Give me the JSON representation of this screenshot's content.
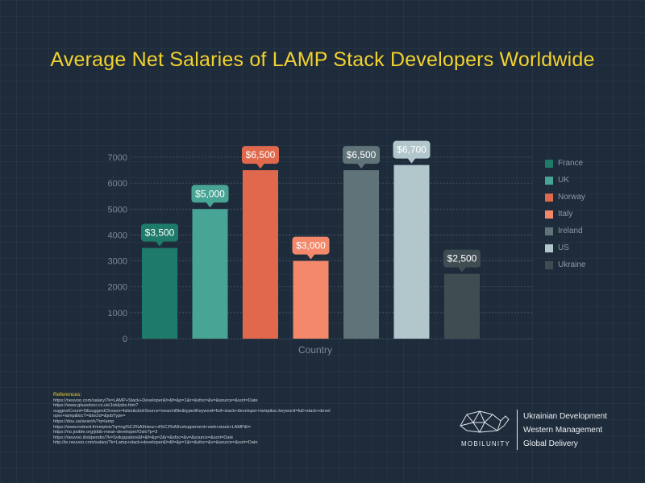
{
  "title": "Average Net Salaries of LAMP Stack Developers Worldwide",
  "chart_data": {
    "type": "bar",
    "categories": [
      "France",
      "UK",
      "Norway",
      "Italy",
      "Ireland",
      "US",
      "Ukraine"
    ],
    "values": [
      3500,
      5000,
      6500,
      3000,
      6500,
      6700,
      2500
    ],
    "data_labels": [
      "$3,500",
      "$5,000",
      "$6,500",
      "$3,000",
      "$6,500",
      "$6,700",
      "$2,500"
    ],
    "colors": [
      "#1e7b6a",
      "#48a494",
      "#e0694d",
      "#f3896a",
      "#5f7378",
      "#b2c7cb",
      "#3f4d53"
    ],
    "xlabel": "Country",
    "ylabel": "",
    "ylim": [
      0,
      7000
    ],
    "yticks": [
      0,
      1000,
      2000,
      3000,
      4000,
      5000,
      6000,
      7000
    ],
    "grid": true,
    "legend": [
      "France",
      "UK",
      "Norway",
      "Italy",
      "Ireland",
      "US",
      "Ukraine"
    ],
    "legend_position": "right"
  },
  "references": {
    "title": "References:",
    "lines": [
      "https://neuvoo.com/salary/?k=LAMP+Stack+Developer&l=&f=&p=1&r=&sfoc=&v=&source=&sort=Date",
      "https://www.glassdoor.co.uk/Job/jobs.htm?",
      "suggestCount=0&suggestChosen=false&clickSource=searchBtn&typedKeyword=full+stack+developer+lamp&sc.keyword=full+stack+devel",
      "oper+lamp&locT=&locId=&jobType=",
      "https://dou.ua/search/?q=lamp",
      "https://www.indeed.fr/emplois?q=ing%C3%A9nieur+d%C3%A9veloppement+web+stack+LAMP&l=",
      "https://no.jooble.org/jobb-mean-developer/Oslo?p=3",
      "https://neuvoo.it/stipendio/?k=Sviluppatore&l=&f=&p=2&r=&sfoc=&v=&source=&sort=Date",
      "http://ie.neuvoo.com/salary/?k=Lamp+stack+developer&l=&f=&p=1&r=&sfoc=&v=&source=&sort=Date"
    ]
  },
  "brand": {
    "name": "MOBILUNITY",
    "taglines": [
      "Ukrainian Development",
      "Western Management",
      "Global Delivery"
    ]
  }
}
